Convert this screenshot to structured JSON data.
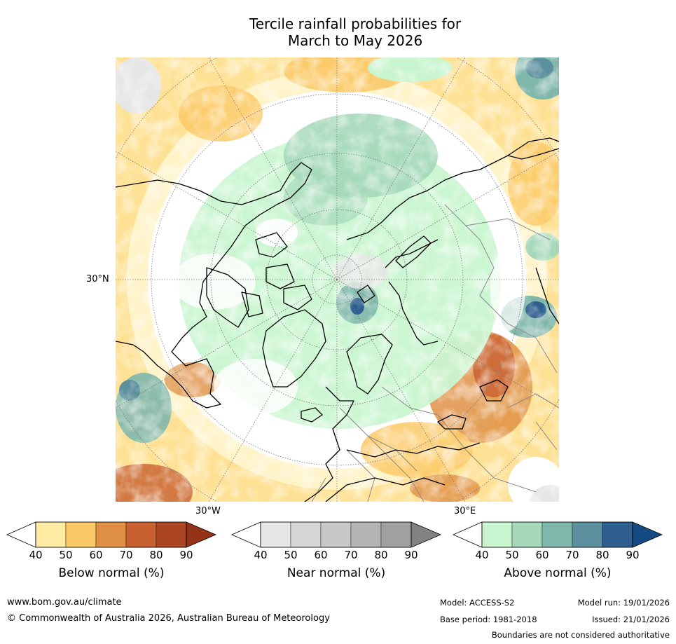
{
  "title": {
    "line1": "Tercile rainfall probabilities for",
    "line2": "March to May 2026"
  },
  "axes": {
    "lat_label": "30°N",
    "lon_west_label": "30°W",
    "lon_east_label": "30°E"
  },
  "colorbars": [
    {
      "name": "below",
      "label": "Below normal (%)",
      "ticks": [
        "40",
        "50",
        "60",
        "70",
        "80",
        "90"
      ],
      "colors": [
        "#ffffff",
        "#ffeba4",
        "#fbc967",
        "#df9045",
        "#c8602f",
        "#ac4523",
        "#943315"
      ]
    },
    {
      "name": "near",
      "label": "Near normal (%)",
      "ticks": [
        "40",
        "50",
        "60",
        "70",
        "80",
        "90"
      ],
      "colors": [
        "#ffffff",
        "#e6e6e6",
        "#d6d6d6",
        "#c8c8c8",
        "#b4b4b4",
        "#a0a0a0",
        "#828282"
      ]
    },
    {
      "name": "above",
      "label": "Above normal (%)",
      "ticks": [
        "40",
        "50",
        "60",
        "70",
        "80",
        "90"
      ],
      "colors": [
        "#ffffff",
        "#c8f5cf",
        "#a4d8b9",
        "#80b7ab",
        "#5d909e",
        "#2e5f8f",
        "#144a83"
      ]
    }
  ],
  "footer": {
    "url": "www.bom.gov.au/climate",
    "copyright": "© Commonwealth of Australia 2026, Australian Bureau of Meteorology",
    "model": "Model: ACCESS-S2",
    "base_period": "Base period: 1981-2018",
    "model_run": "Model run: 19/01/2026",
    "issued": "Issued: 21/01/2026",
    "disclaimer": "Boundaries are not considered authoritative"
  }
}
